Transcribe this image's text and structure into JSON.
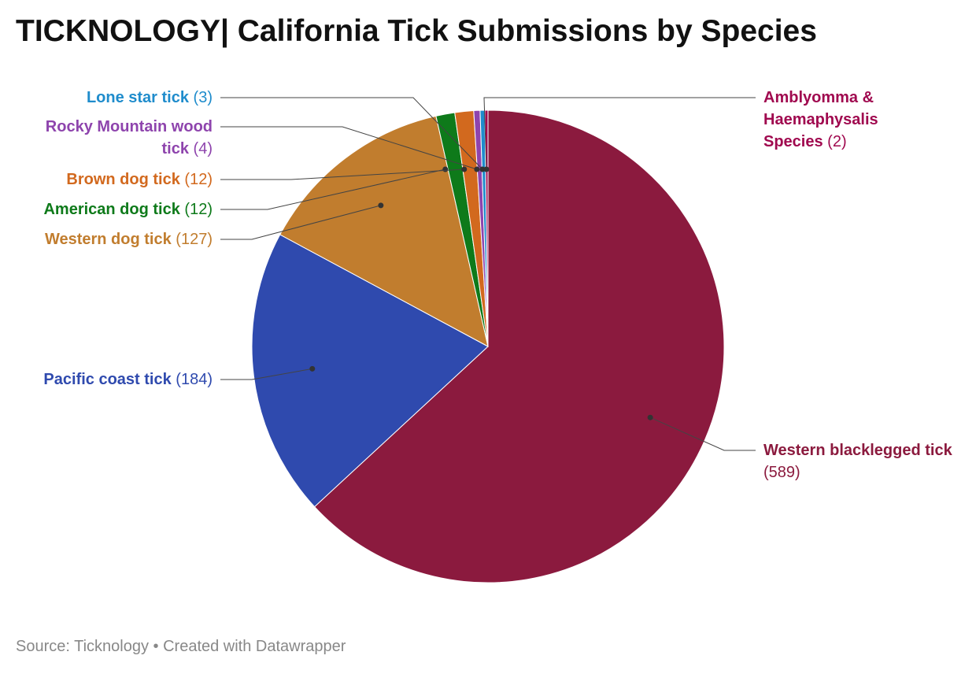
{
  "chart_data": {
    "type": "pie",
    "title": "TICKNOLOGY| California Tick Submissions by Species",
    "categories": [
      "Western blacklegged tick",
      "Pacific coast tick",
      "Western dog tick",
      "American dog tick",
      "Brown dog tick",
      "Rocky Mountain wood tick",
      "Lone star tick",
      "Amblyomma & Haemaphysalis Species"
    ],
    "values": [
      589,
      184,
      127,
      12,
      12,
      4,
      3,
      2
    ],
    "value_labels": [
      "(589)",
      "(184)",
      "(127)",
      "(12)",
      "(12)",
      "(4)",
      "(3)",
      "(2)"
    ],
    "colors": [
      "#8b1a3e",
      "#2f4aae",
      "#c17d2e",
      "#0e7a1a",
      "#d2691e",
      "#8e44ad",
      "#1f8ccc",
      "#a0094f"
    ],
    "source": "Source: Ticknology • Created with Datawrapper"
  }
}
